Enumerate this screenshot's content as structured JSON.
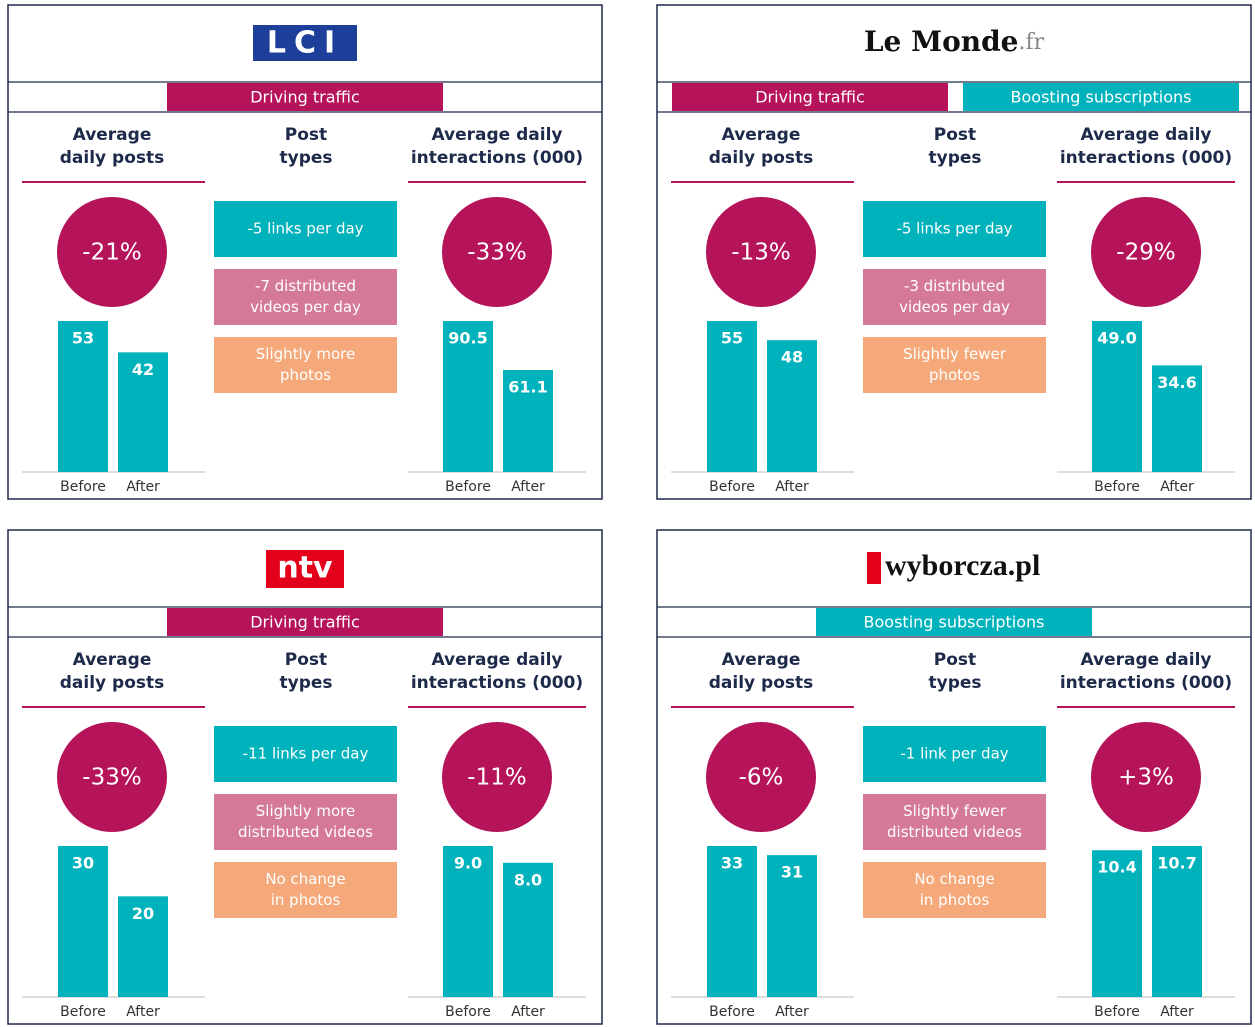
{
  "column_headers": [
    [
      "Average",
      "daily posts"
    ],
    [
      "Post",
      "types"
    ],
    [
      "Average daily",
      "interactions (000)"
    ]
  ],
  "categories": [
    "Before",
    "After"
  ],
  "bar_color": "#00b2bb",
  "circle_color": "#b5135a",
  "panels": [
    {
      "logo": {
        "text": "LCI"
      },
      "tags": [
        {
          "text": "Driving traffic",
          "color": "#b5135a"
        }
      ],
      "posts": {
        "change": "-21%",
        "values": [
          53,
          42
        ],
        "value_labels": [
          "53",
          "42"
        ]
      },
      "post_types": [
        {
          "lines": [
            "-5 links per day"
          ],
          "color": "#00b2bb"
        },
        {
          "lines": [
            "-7 distributed",
            "videos per day"
          ],
          "color": "#d4799a"
        },
        {
          "lines": [
            "Slightly more",
            "photos"
          ],
          "color": "#f5a97a"
        }
      ],
      "interactions": {
        "change": "-33%",
        "values": [
          90.5,
          61.1
        ],
        "value_labels": [
          "90.5",
          "61.1"
        ]
      }
    },
    {
      "logo": {
        "text": "Le Monde",
        "suffix": ".fr"
      },
      "tags": [
        {
          "text": "Driving traffic",
          "color": "#b5135a"
        },
        {
          "text": "Boosting subscriptions",
          "color": "#00b2bb"
        }
      ],
      "posts": {
        "change": "-13%",
        "values": [
          55,
          48
        ],
        "value_labels": [
          "55",
          "48"
        ]
      },
      "post_types": [
        {
          "lines": [
            "-5 links per day"
          ],
          "color": "#00b2bb"
        },
        {
          "lines": [
            "-3 distributed",
            "videos per day"
          ],
          "color": "#d4799a"
        },
        {
          "lines": [
            "Slightly fewer",
            "photos"
          ],
          "color": "#f5a97a"
        }
      ],
      "interactions": {
        "change": "-29%",
        "values": [
          49.0,
          34.6
        ],
        "value_labels": [
          "49.0",
          "34.6"
        ]
      }
    },
    {
      "logo": {
        "text": "ntv"
      },
      "tags": [
        {
          "text": "Driving traffic",
          "color": "#b5135a"
        }
      ],
      "posts": {
        "change": "-33%",
        "values": [
          30,
          20
        ],
        "value_labels": [
          "30",
          "20"
        ]
      },
      "post_types": [
        {
          "lines": [
            "-11 links per day"
          ],
          "color": "#00b2bb"
        },
        {
          "lines": [
            "Slightly more",
            "distributed videos"
          ],
          "color": "#d4799a"
        },
        {
          "lines": [
            "No change",
            "in photos"
          ],
          "color": "#f5a97a"
        }
      ],
      "interactions": {
        "change": "-11%",
        "values": [
          9.0,
          8.0
        ],
        "value_labels": [
          "9.0",
          "8.0"
        ]
      }
    },
    {
      "logo": {
        "text": "wyborcza.pl"
      },
      "tags": [
        {
          "text": "Boosting subscriptions",
          "color": "#00b2bb"
        }
      ],
      "posts": {
        "change": "-6%",
        "values": [
          33,
          31
        ],
        "value_labels": [
          "33",
          "31"
        ]
      },
      "post_types": [
        {
          "lines": [
            "-1 link per day"
          ],
          "color": "#00b2bb"
        },
        {
          "lines": [
            "Slightly fewer",
            "distributed videos"
          ],
          "color": "#d4799a"
        },
        {
          "lines": [
            "No change",
            "in photos"
          ],
          "color": "#f5a97a"
        }
      ],
      "interactions": {
        "change": "+3%",
        "values": [
          10.4,
          10.7
        ],
        "value_labels": [
          "10.4",
          "10.7"
        ]
      }
    }
  ]
}
